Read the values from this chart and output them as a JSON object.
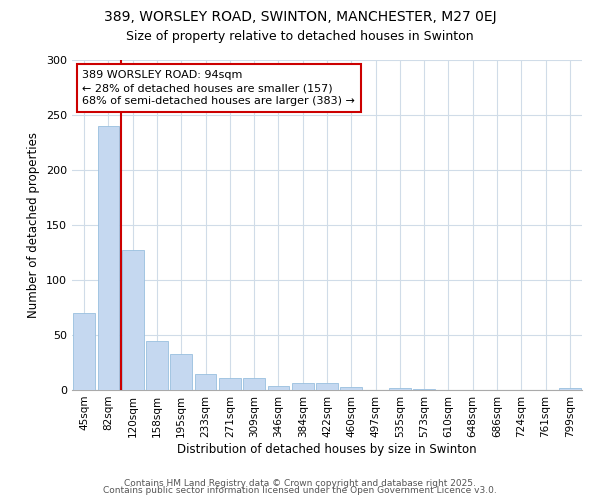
{
  "title1": "389, WORSLEY ROAD, SWINTON, MANCHESTER, M27 0EJ",
  "title2": "Size of property relative to detached houses in Swinton",
  "xlabel": "Distribution of detached houses by size in Swinton",
  "ylabel": "Number of detached properties",
  "categories": [
    "45sqm",
    "82sqm",
    "120sqm",
    "158sqm",
    "195sqm",
    "233sqm",
    "271sqm",
    "309sqm",
    "346sqm",
    "384sqm",
    "422sqm",
    "460sqm",
    "497sqm",
    "535sqm",
    "573sqm",
    "610sqm",
    "648sqm",
    "686sqm",
    "724sqm",
    "761sqm",
    "799sqm"
  ],
  "values": [
    70,
    240,
    127,
    45,
    33,
    15,
    11,
    11,
    4,
    6,
    6,
    3,
    0,
    2,
    1,
    0,
    0,
    0,
    0,
    0,
    2
  ],
  "bar_color": "#c5d8f0",
  "bar_edge_color": "#99bfdf",
  "vline_color": "#cc0000",
  "annotation_text": "389 WORSLEY ROAD: 94sqm\n← 28% of detached houses are smaller (157)\n68% of semi-detached houses are larger (383) →",
  "annotation_box_color": "white",
  "annotation_box_edge": "#cc0000",
  "ylim": [
    0,
    300
  ],
  "yticks": [
    0,
    50,
    100,
    150,
    200,
    250,
    300
  ],
  "plot_bg": "white",
  "fig_bg": "white",
  "grid_color": "#d0dce8",
  "footer1": "Contains HM Land Registry data © Crown copyright and database right 2025.",
  "footer2": "Contains public sector information licensed under the Open Government Licence v3.0.",
  "title1_fontsize": 10,
  "title2_fontsize": 9,
  "tick_fontsize": 7.5,
  "label_fontsize": 8.5,
  "footer_fontsize": 6.5
}
